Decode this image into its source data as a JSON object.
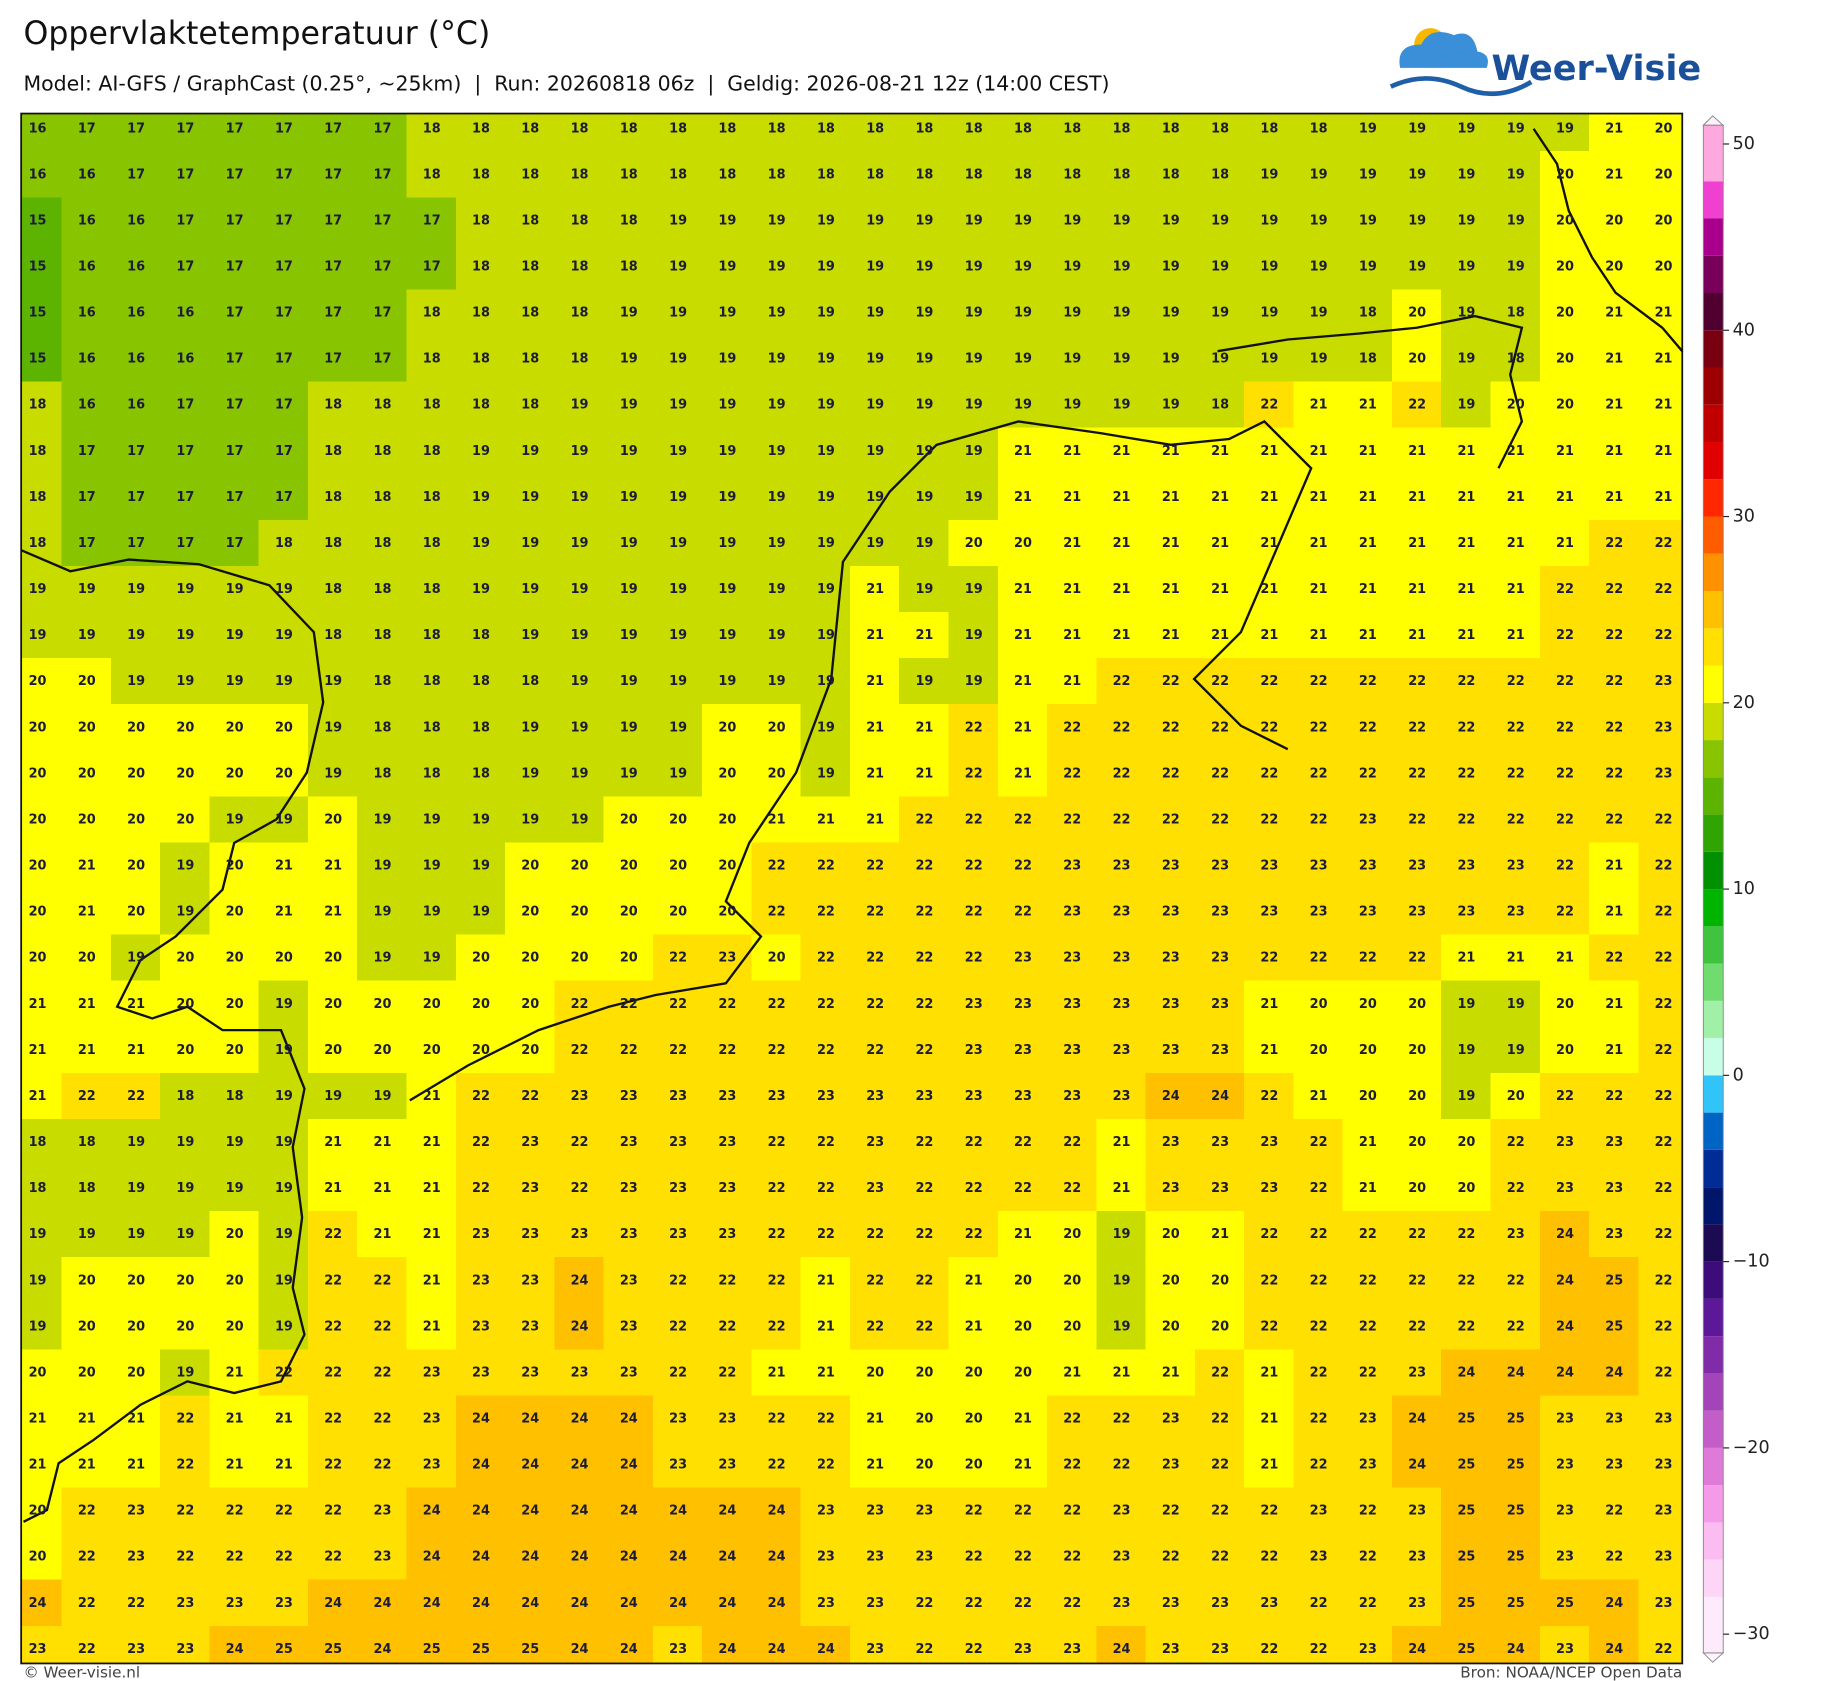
{
  "chart_data": {
    "type": "heatmap",
    "title": "Oppervlaktetemperatuur (°C)",
    "subtitle": "Model: AI-GFS / GraphCast (0.25°, ~25km)  |  Run: 20260818 06z  |  Geldig: 2026-08-21 12z (14:00 CEST)",
    "logo": "Weer-Visie",
    "footer_left": "© Weer-visie.nl",
    "footer_right": "Bron: NOAA/NCEP Open Data",
    "values": [
      [
        16,
        17,
        17,
        17,
        17,
        17,
        17,
        17,
        18,
        18,
        18,
        18,
        18,
        18,
        18,
        18,
        18,
        18,
        18,
        18,
        18,
        18,
        18,
        18,
        18,
        18,
        18,
        19,
        19,
        19,
        19,
        19,
        21,
        20
      ],
      [
        16,
        16,
        17,
        17,
        17,
        17,
        17,
        17,
        18,
        18,
        18,
        18,
        18,
        18,
        18,
        18,
        18,
        18,
        18,
        18,
        18,
        18,
        18,
        18,
        18,
        19,
        19,
        19,
        19,
        19,
        19,
        20,
        21,
        20
      ],
      [
        15,
        16,
        16,
        17,
        17,
        17,
        17,
        17,
        17,
        18,
        18,
        18,
        18,
        19,
        19,
        19,
        19,
        19,
        19,
        19,
        19,
        19,
        19,
        19,
        19,
        19,
        19,
        19,
        19,
        19,
        19,
        20,
        20,
        20
      ],
      [
        15,
        16,
        16,
        17,
        17,
        17,
        17,
        17,
        17,
        18,
        18,
        18,
        18,
        19,
        19,
        19,
        19,
        19,
        19,
        19,
        19,
        19,
        19,
        19,
        19,
        19,
        19,
        19,
        19,
        19,
        19,
        20,
        20,
        20
      ],
      [
        15,
        16,
        16,
        16,
        17,
        17,
        17,
        17,
        18,
        18,
        18,
        18,
        19,
        19,
        19,
        19,
        19,
        19,
        19,
        19,
        19,
        19,
        19,
        19,
        19,
        19,
        19,
        18,
        20,
        19,
        18,
        20,
        21,
        21
      ],
      [
        15,
        16,
        16,
        16,
        17,
        17,
        17,
        17,
        18,
        18,
        18,
        18,
        19,
        19,
        19,
        19,
        19,
        19,
        19,
        19,
        19,
        19,
        19,
        19,
        19,
        19,
        19,
        18,
        20,
        19,
        18,
        20,
        21,
        21
      ],
      [
        18,
        16,
        16,
        17,
        17,
        17,
        18,
        18,
        18,
        18,
        18,
        19,
        19,
        19,
        19,
        19,
        19,
        19,
        19,
        19,
        19,
        19,
        19,
        19,
        18,
        22,
        21,
        21,
        22,
        19,
        20,
        20,
        21,
        21
      ],
      [
        18,
        17,
        17,
        17,
        17,
        17,
        18,
        18,
        18,
        19,
        19,
        19,
        19,
        19,
        19,
        19,
        19,
        19,
        19,
        19,
        21,
        21,
        21,
        21,
        21,
        21,
        21,
        21,
        21,
        21,
        21,
        21,
        21,
        21
      ],
      [
        18,
        17,
        17,
        17,
        17,
        17,
        18,
        18,
        18,
        19,
        19,
        19,
        19,
        19,
        19,
        19,
        19,
        19,
        19,
        19,
        21,
        21,
        21,
        21,
        21,
        21,
        21,
        21,
        21,
        21,
        21,
        21,
        21,
        21
      ],
      [
        18,
        17,
        17,
        17,
        17,
        18,
        18,
        18,
        18,
        19,
        19,
        19,
        19,
        19,
        19,
        19,
        19,
        19,
        19,
        20,
        20,
        21,
        21,
        21,
        21,
        21,
        21,
        21,
        21,
        21,
        21,
        21,
        22,
        22
      ],
      [
        19,
        19,
        19,
        19,
        19,
        19,
        18,
        18,
        18,
        19,
        19,
        19,
        19,
        19,
        19,
        19,
        19,
        21,
        19,
        19,
        21,
        21,
        21,
        21,
        21,
        21,
        21,
        21,
        21,
        21,
        21,
        22,
        22,
        22
      ],
      [
        19,
        19,
        19,
        19,
        19,
        19,
        18,
        18,
        18,
        18,
        19,
        19,
        19,
        19,
        19,
        19,
        19,
        21,
        21,
        19,
        21,
        21,
        21,
        21,
        21,
        21,
        21,
        21,
        21,
        21,
        21,
        22,
        22,
        22
      ],
      [
        20,
        20,
        19,
        19,
        19,
        19,
        19,
        18,
        18,
        18,
        18,
        19,
        19,
        19,
        19,
        19,
        19,
        21,
        19,
        19,
        21,
        21,
        22,
        22,
        22,
        22,
        22,
        22,
        22,
        22,
        22,
        22,
        22,
        23
      ],
      [
        20,
        20,
        20,
        20,
        20,
        20,
        19,
        18,
        18,
        18,
        19,
        19,
        19,
        19,
        20,
        20,
        19,
        21,
        21,
        22,
        21,
        22,
        22,
        22,
        22,
        22,
        22,
        22,
        22,
        22,
        22,
        22,
        22,
        23
      ],
      [
        20,
        20,
        20,
        20,
        20,
        20,
        19,
        18,
        18,
        18,
        19,
        19,
        19,
        19,
        20,
        20,
        19,
        21,
        21,
        22,
        21,
        22,
        22,
        22,
        22,
        22,
        22,
        22,
        22,
        22,
        22,
        22,
        22,
        23
      ],
      [
        20,
        20,
        20,
        20,
        19,
        19,
        20,
        19,
        19,
        19,
        19,
        19,
        20,
        20,
        20,
        21,
        21,
        21,
        22,
        22,
        22,
        22,
        22,
        22,
        22,
        22,
        22,
        23,
        22,
        22,
        22,
        22,
        22,
        22
      ],
      [
        20,
        21,
        20,
        19,
        20,
        21,
        21,
        19,
        19,
        19,
        20,
        20,
        20,
        20,
        20,
        22,
        22,
        22,
        22,
        22,
        22,
        23,
        23,
        23,
        23,
        23,
        23,
        23,
        23,
        23,
        23,
        22,
        21,
        22
      ],
      [
        20,
        21,
        20,
        19,
        20,
        21,
        21,
        19,
        19,
        19,
        20,
        20,
        20,
        20,
        20,
        22,
        22,
        22,
        22,
        22,
        22,
        23,
        23,
        23,
        23,
        23,
        23,
        23,
        23,
        23,
        23,
        22,
        21,
        22
      ],
      [
        20,
        20,
        19,
        20,
        20,
        20,
        20,
        19,
        19,
        20,
        20,
        20,
        20,
        22,
        23,
        20,
        22,
        22,
        22,
        22,
        23,
        23,
        23,
        23,
        23,
        22,
        22,
        22,
        22,
        21,
        21,
        21,
        22,
        22
      ],
      [
        21,
        21,
        21,
        20,
        20,
        19,
        20,
        20,
        20,
        20,
        20,
        22,
        22,
        22,
        22,
        22,
        22,
        22,
        22,
        23,
        23,
        23,
        23,
        23,
        23,
        21,
        20,
        20,
        20,
        19,
        19,
        20,
        21,
        22
      ],
      [
        21,
        21,
        21,
        20,
        20,
        19,
        20,
        20,
        20,
        20,
        20,
        22,
        22,
        22,
        22,
        22,
        22,
        22,
        22,
        23,
        23,
        23,
        23,
        23,
        23,
        21,
        20,
        20,
        20,
        19,
        19,
        20,
        21,
        22
      ],
      [
        21,
        22,
        22,
        18,
        18,
        19,
        19,
        19,
        21,
        22,
        22,
        23,
        23,
        23,
        23,
        23,
        23,
        23,
        23,
        23,
        23,
        23,
        23,
        24,
        24,
        22,
        21,
        20,
        20,
        19,
        20,
        22,
        22,
        22
      ],
      [
        18,
        18,
        19,
        19,
        19,
        19,
        21,
        21,
        21,
        22,
        23,
        22,
        23,
        23,
        23,
        22,
        22,
        23,
        22,
        22,
        22,
        22,
        21,
        23,
        23,
        23,
        22,
        21,
        20,
        20,
        22,
        23,
        23,
        22
      ],
      [
        18,
        18,
        19,
        19,
        19,
        19,
        21,
        21,
        21,
        22,
        23,
        22,
        23,
        23,
        23,
        22,
        22,
        23,
        22,
        22,
        22,
        22,
        21,
        23,
        23,
        23,
        22,
        21,
        20,
        20,
        22,
        23,
        23,
        22
      ],
      [
        19,
        19,
        19,
        19,
        20,
        19,
        22,
        21,
        21,
        23,
        23,
        23,
        23,
        23,
        23,
        22,
        22,
        22,
        22,
        22,
        21,
        20,
        19,
        20,
        21,
        22,
        22,
        22,
        22,
        22,
        23,
        24,
        23,
        22
      ],
      [
        19,
        20,
        20,
        20,
        20,
        19,
        22,
        22,
        21,
        23,
        23,
        24,
        23,
        22,
        22,
        22,
        21,
        22,
        22,
        21,
        20,
        20,
        19,
        20,
        20,
        22,
        22,
        22,
        22,
        22,
        22,
        24,
        25,
        22
      ],
      [
        19,
        20,
        20,
        20,
        20,
        19,
        22,
        22,
        21,
        23,
        23,
        24,
        23,
        22,
        22,
        22,
        21,
        22,
        22,
        21,
        20,
        20,
        19,
        20,
        20,
        22,
        22,
        22,
        22,
        22,
        22,
        24,
        25,
        22
      ],
      [
        20,
        20,
        20,
        19,
        21,
        22,
        22,
        22,
        23,
        23,
        23,
        23,
        23,
        22,
        22,
        21,
        21,
        20,
        20,
        20,
        20,
        21,
        21,
        21,
        22,
        21,
        22,
        22,
        23,
        24,
        24,
        24,
        24,
        22
      ],
      [
        21,
        21,
        21,
        22,
        21,
        21,
        22,
        22,
        23,
        24,
        24,
        24,
        24,
        23,
        23,
        22,
        22,
        21,
        20,
        20,
        21,
        22,
        22,
        23,
        22,
        21,
        22,
        23,
        24,
        25,
        25,
        23,
        23,
        23
      ],
      [
        21,
        21,
        21,
        22,
        21,
        21,
        22,
        22,
        23,
        24,
        24,
        24,
        24,
        23,
        23,
        22,
        22,
        21,
        20,
        20,
        21,
        22,
        22,
        23,
        22,
        21,
        22,
        23,
        24,
        25,
        25,
        23,
        23,
        23
      ],
      [
        20,
        22,
        23,
        22,
        22,
        22,
        22,
        23,
        24,
        24,
        24,
        24,
        24,
        24,
        24,
        24,
        23,
        23,
        23,
        22,
        22,
        22,
        23,
        22,
        22,
        22,
        23,
        22,
        23,
        25,
        25,
        23,
        22,
        23
      ],
      [
        20,
        22,
        23,
        22,
        22,
        22,
        22,
        23,
        24,
        24,
        24,
        24,
        24,
        24,
        24,
        24,
        23,
        23,
        23,
        22,
        22,
        22,
        23,
        22,
        22,
        22,
        23,
        22,
        23,
        25,
        25,
        23,
        22,
        23
      ],
      [
        24,
        22,
        22,
        23,
        23,
        23,
        24,
        24,
        24,
        24,
        24,
        24,
        24,
        24,
        24,
        24,
        23,
        23,
        22,
        22,
        22,
        22,
        23,
        23,
        23,
        23,
        22,
        22,
        23,
        25,
        25,
        25,
        24,
        23
      ],
      [
        23,
        22,
        23,
        23,
        24,
        25,
        25,
        24,
        25,
        25,
        25,
        24,
        24,
        23,
        24,
        24,
        24,
        23,
        22,
        22,
        23,
        23,
        24,
        23,
        23,
        22,
        22,
        23,
        24,
        25,
        24,
        23,
        24,
        22
      ]
    ],
    "colorbar": {
      "levels": [
        -30,
        -28,
        -26,
        -24,
        -22,
        -20,
        -18,
        -16,
        -14,
        -12,
        -10,
        -8,
        -6,
        -4,
        -2,
        0,
        2,
        4,
        6,
        8,
        10,
        12,
        14,
        16,
        18,
        20,
        22,
        24,
        26,
        28,
        30,
        32,
        34,
        36,
        38,
        40,
        42,
        44,
        46,
        48,
        50
      ],
      "colors": [
        "#fdeafb",
        "#fdd6f7",
        "#fbbcf1",
        "#f49ae8",
        "#e07ad9",
        "#c35ec9",
        "#a344b8",
        "#802ca8",
        "#5c1898",
        "#3c0c7a",
        "#1c0a52",
        "#00166a",
        "#002c96",
        "#0064c4",
        "#30c4f8",
        "#c8fde8",
        "#a0f0a8",
        "#70dc70",
        "#40c440",
        "#00b400",
        "#009000",
        "#30a400",
        "#5cb400",
        "#88c400",
        "#c8dc00",
        "#ffff00",
        "#ffe000",
        "#ffc000",
        "#ff9000",
        "#ff5c00",
        "#ff2800",
        "#e00000",
        "#c00000",
        "#9c0000",
        "#780010",
        "#500030",
        "#78005a",
        "#a8008c",
        "#f040d0",
        "#ffa8e0"
      ],
      "ticks": [
        50,
        40,
        30,
        20,
        10,
        0,
        {
          "value": -10,
          "label": "−10"
        },
        {
          "value": -20,
          "label": "−20"
        },
        {
          "value": -30,
          "label": "−30"
        }
      ]
    }
  }
}
